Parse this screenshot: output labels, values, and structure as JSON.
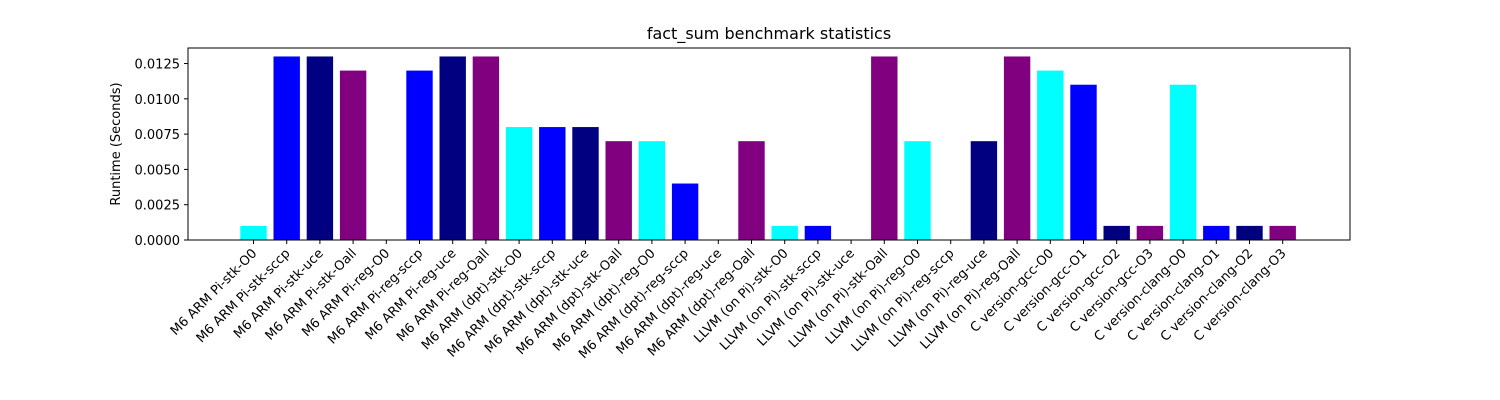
{
  "chart_data": {
    "type": "bar",
    "title": "fact_sum benchmark statistics",
    "xlabel": "",
    "ylabel": "Runtime (Seconds)",
    "ylim": [
      0,
      0.0136
    ],
    "yticks": [
      "0.0000",
      "0.0025",
      "0.0050",
      "0.0075",
      "0.0100",
      "0.0125"
    ],
    "ytick_values": [
      0,
      0.0025,
      0.005,
      0.0075,
      0.01,
      0.0125
    ],
    "grid": false,
    "categories": [
      "M6 ARM Pi-stk-O0",
      "M6 ARM Pi-stk-sccp",
      "M6 ARM Pi-stk-uce",
      "M6 ARM Pi-stk-Oall",
      "M6 ARM Pi-reg-O0",
      "M6 ARM Pi-reg-sccp",
      "M6 ARM Pi-reg-uce",
      "M6 ARM Pi-reg-Oall",
      "M6 ARM (dpt)-stk-O0",
      "M6 ARM (dpt)-stk-sccp",
      "M6 ARM (dpt)-stk-uce",
      "M6 ARM (dpt)-stk-Oall",
      "M6 ARM (dpt)-reg-O0",
      "M6 ARM (dpt)-reg-sccp",
      "M6 ARM (dpt)-reg-uce",
      "M6 ARM (dpt)-reg-Oall",
      "LLVM (on Pi)-stk-O0",
      "LLVM (on Pi)-stk-sccp",
      "LLVM (on Pi)-stk-uce",
      "LLVM (on Pi)-stk-Oall",
      "LLVM (on Pi)-reg-O0",
      "LLVM (on Pi)-reg-sccp",
      "LLVM (on Pi)-reg-uce",
      "LLVM (on Pi)-reg-Oall",
      "C version-gcc-O0",
      "C version-gcc-O1",
      "C version-gcc-O2",
      "C version-gcc-O3",
      "C version-clang-O0",
      "C version-clang-O1",
      "C version-clang-O2",
      "C version-clang-O3"
    ],
    "values": [
      0.001,
      0.013,
      0.013,
      0.012,
      0.0,
      0.012,
      0.013,
      0.013,
      0.008,
      0.008,
      0.008,
      0.007,
      0.007,
      0.004,
      0.0,
      0.007,
      0.001,
      0.001,
      0.0,
      0.013,
      0.007,
      0.0,
      0.007,
      0.013,
      0.012,
      0.011,
      0.001,
      0.001,
      0.011,
      0.001,
      0.001,
      0.001
    ],
    "colors": [
      "#00ffff",
      "#0000ff",
      "#000080",
      "#800080",
      "#00ffff",
      "#0000ff",
      "#000080",
      "#800080",
      "#00ffff",
      "#0000ff",
      "#000080",
      "#800080",
      "#00ffff",
      "#0000ff",
      "#000080",
      "#800080",
      "#00ffff",
      "#0000ff",
      "#000080",
      "#800080",
      "#00ffff",
      "#0000ff",
      "#000080",
      "#800080",
      "#00ffff",
      "#0000ff",
      "#000080",
      "#800080",
      "#00ffff",
      "#0000ff",
      "#000080",
      "#800080"
    ]
  }
}
